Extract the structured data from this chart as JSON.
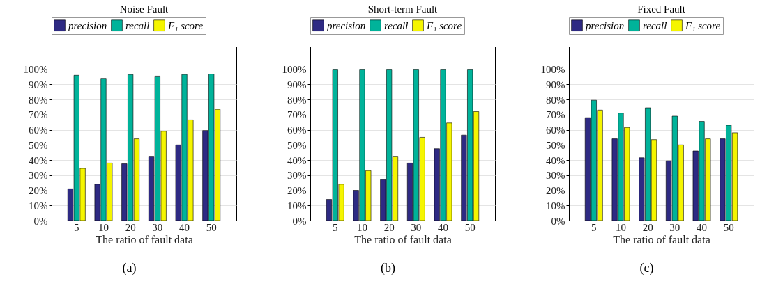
{
  "chart_data": [
    {
      "type": "bar",
      "title": "Noise Fault",
      "xlabel": "The ratio of fault data",
      "annotations": [
        "(a)"
      ],
      "categories": [
        "5",
        "10",
        "20",
        "30",
        "40",
        "50"
      ],
      "ylim": [
        0,
        115
      ],
      "yticks": [
        {
          "value": 0,
          "label": "0%"
        },
        {
          "value": 10,
          "label": "10%"
        },
        {
          "value": 20,
          "label": "20%"
        },
        {
          "value": 30,
          "label": "30%"
        },
        {
          "value": 40,
          "label": "40%"
        },
        {
          "value": 50,
          "label": "50%"
        },
        {
          "value": 60,
          "label": "60%"
        },
        {
          "value": 70,
          "label": "70%"
        },
        {
          "value": 80,
          "label": "80%"
        },
        {
          "value": 90,
          "label": "90%"
        },
        {
          "value": 100,
          "label": "100%"
        }
      ],
      "grid": "y",
      "legend": "top",
      "series": [
        {
          "name": "precision",
          "color": "#2e2a83",
          "values": [
            21,
            24,
            37.5,
            42.5,
            50,
            59.5
          ]
        },
        {
          "name": "recall",
          "color": "#00b39a",
          "values": [
            96,
            94,
            96.5,
            95.5,
            96.5,
            96.8
          ]
        },
        {
          "name": "F₁ score",
          "color": "#f5f500",
          "values": [
            34.5,
            38,
            54,
            59,
            66.5,
            73.5
          ]
        }
      ]
    },
    {
      "type": "bar",
      "title": "Short-term Fault",
      "xlabel": "The ratio of fault data",
      "annotations": [
        "(b)"
      ],
      "categories": [
        "5",
        "10",
        "20",
        "30",
        "40",
        "50"
      ],
      "ylim": [
        0,
        115
      ],
      "yticks": [
        {
          "value": 0,
          "label": "0%"
        },
        {
          "value": 10,
          "label": "10%"
        },
        {
          "value": 20,
          "label": "20%"
        },
        {
          "value": 30,
          "label": "30%"
        },
        {
          "value": 40,
          "label": "40%"
        },
        {
          "value": 50,
          "label": "50%"
        },
        {
          "value": 60,
          "label": "60%"
        },
        {
          "value": 70,
          "label": "70%"
        },
        {
          "value": 80,
          "label": "80%"
        },
        {
          "value": 90,
          "label": "90%"
        },
        {
          "value": 100,
          "label": "100%"
        }
      ],
      "grid": "y",
      "legend": "top",
      "series": [
        {
          "name": "precision",
          "color": "#2e2a83",
          "values": [
            14,
            20,
            27,
            38,
            47.5,
            56.5
          ]
        },
        {
          "name": "recall",
          "color": "#00b39a",
          "values": [
            100,
            100,
            100,
            100,
            100,
            100
          ]
        },
        {
          "name": "F₁ score",
          "color": "#f5f500",
          "values": [
            24,
            33,
            42.5,
            55,
            64.5,
            72
          ]
        }
      ]
    },
    {
      "type": "bar",
      "title": "Fixed Fault",
      "xlabel": "The ratio of fault data",
      "annotations": [
        "(c)"
      ],
      "categories": [
        "5",
        "10",
        "20",
        "30",
        "40",
        "50"
      ],
      "ylim": [
        0,
        115
      ],
      "yticks": [
        {
          "value": 0,
          "label": "0%"
        },
        {
          "value": 10,
          "label": "10%"
        },
        {
          "value": 20,
          "label": "20%"
        },
        {
          "value": 30,
          "label": "30%"
        },
        {
          "value": 40,
          "label": "40%"
        },
        {
          "value": 50,
          "label": "50%"
        },
        {
          "value": 60,
          "label": "60%"
        },
        {
          "value": 70,
          "label": "70%"
        },
        {
          "value": 80,
          "label": "80%"
        },
        {
          "value": 90,
          "label": "90%"
        },
        {
          "value": 100,
          "label": "100%"
        }
      ],
      "grid": "y",
      "legend": "top",
      "series": [
        {
          "name": "precision",
          "color": "#2e2a83",
          "values": [
            68,
            54,
            41.5,
            39.5,
            46,
            54
          ]
        },
        {
          "name": "recall",
          "color": "#00b39a",
          "values": [
            79.5,
            71,
            74.5,
            69,
            65.5,
            63
          ]
        },
        {
          "name": "F₁ score",
          "color": "#f5f500",
          "values": [
            73,
            61.5,
            53.5,
            50,
            54,
            58
          ]
        }
      ]
    }
  ]
}
